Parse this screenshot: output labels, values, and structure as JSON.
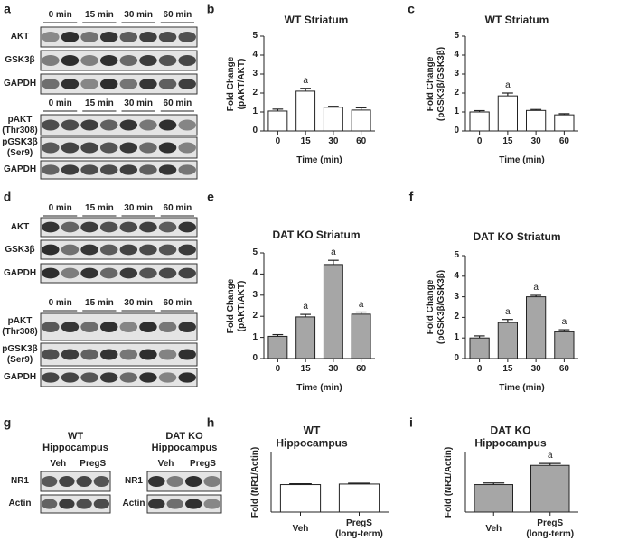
{
  "panel_labels": [
    "a",
    "b",
    "c",
    "d",
    "e",
    "f",
    "g",
    "h",
    "i"
  ],
  "blots": [
    {
      "groups": [
        {
          "columns": [
            "0 min",
            "15 min",
            "30 min",
            "60 min"
          ],
          "rows": [
            "AKT",
            "GSK3β",
            "GAPDH"
          ]
        },
        {
          "columns": [
            "0 min",
            "15 min",
            "30 min",
            "60 min"
          ],
          "rows": [
            "pAKT\n(Thr308)",
            "pGSK3β\n(Ser9)",
            "GAPDH"
          ]
        }
      ]
    },
    {
      "groups": [
        {
          "columns": [
            "0 min",
            "15 min",
            "30 min",
            "60 min"
          ],
          "rows": [
            "AKT",
            "GSK3β",
            "GAPDH"
          ]
        },
        {
          "columns": [
            "0 min",
            "15 min",
            "30 min",
            "60 min"
          ],
          "rows": [
            "pAKT\n(Thr308)",
            "pGSK3β\n(Ser9)",
            "GAPDH"
          ]
        }
      ]
    },
    {
      "groups": [
        {
          "title": "WT\nHippocampus",
          "columns": [
            "Veh",
            "PregS"
          ],
          "rows": [
            "NR1",
            "Actin"
          ]
        },
        {
          "title": "DAT KO\nHippocampus",
          "columns": [
            "Veh",
            "PregS"
          ],
          "rows": [
            "NR1",
            "Actin"
          ]
        }
      ]
    }
  ],
  "chart_data": [
    {
      "type": "bar",
      "title": "WT Striatum",
      "ylabel": "Fold Change\n(pAKT/AKT)",
      "xlabel": "Time (min)",
      "categories": [
        "0",
        "15",
        "30",
        "60"
      ],
      "values": [
        1.05,
        2.1,
        1.25,
        1.1
      ],
      "errors": [
        0.1,
        0.15,
        0.05,
        0.12
      ],
      "color": "#ffffff",
      "ylim": [
        0,
        5
      ],
      "yticks": [
        0,
        1,
        2,
        3,
        4,
        5
      ],
      "annotations": [
        {
          "index": 1,
          "text": "a"
        }
      ]
    },
    {
      "type": "bar",
      "title": "WT Striatum",
      "ylabel": "Fold Change\n(pGSK3β/GSK3β)",
      "xlabel": "Time (min)",
      "categories": [
        "0",
        "15",
        "30",
        "60"
      ],
      "values": [
        1.0,
        1.85,
        1.08,
        0.85
      ],
      "errors": [
        0.07,
        0.15,
        0.05,
        0.06
      ],
      "color": "#ffffff",
      "ylim": [
        0,
        5
      ],
      "yticks": [
        0,
        1,
        2,
        3,
        4,
        5
      ],
      "annotations": [
        {
          "index": 1,
          "text": "a"
        }
      ]
    },
    {
      "type": "bar",
      "title": "DAT KO Striatum",
      "ylabel": "Fold Change\n(pAKT/AKT)",
      "xlabel": "Time (min)",
      "categories": [
        "0",
        "15",
        "30",
        "60"
      ],
      "values": [
        1.05,
        1.97,
        4.45,
        2.1
      ],
      "errors": [
        0.08,
        0.12,
        0.2,
        0.1
      ],
      "color": "#a6a6a6",
      "ylim": [
        0,
        5
      ],
      "yticks": [
        0,
        1,
        2,
        3,
        4,
        5
      ],
      "annotations": [
        {
          "index": 1,
          "text": "a"
        },
        {
          "index": 2,
          "text": "a"
        },
        {
          "index": 3,
          "text": "a"
        }
      ]
    },
    {
      "type": "bar",
      "title": "DAT KO Striatum",
      "ylabel": "Fold Change\n(pGSK3β/GSK3β)",
      "xlabel": "Time (min)",
      "categories": [
        "0",
        "15",
        "30",
        "60"
      ],
      "values": [
        1.0,
        1.75,
        3.0,
        1.3
      ],
      "errors": [
        0.1,
        0.15,
        0.07,
        0.1
      ],
      "color": "#a6a6a6",
      "ylim": [
        0,
        5
      ],
      "yticks": [
        0,
        1,
        2,
        3,
        4,
        5
      ],
      "annotations": [
        {
          "index": 1,
          "text": "a"
        },
        {
          "index": 2,
          "text": "a"
        },
        {
          "index": 3,
          "text": "a"
        }
      ]
    },
    {
      "type": "bar",
      "title": "WT\nHippocampus",
      "ylabel": "Fold (NR1/Actin)",
      "categories": [
        "Veh",
        "PregS\n(long-term)"
      ],
      "values": [
        1.0,
        1.02
      ],
      "errors": [
        0.03,
        0.03
      ],
      "color": "#ffffff",
      "ylim": [
        0,
        2.2
      ]
    },
    {
      "type": "bar",
      "title": "DAT KO\nHippocampus",
      "ylabel": "Fold (NR1/Actin)",
      "categories": [
        "Veh",
        "PregS\n(long-term)"
      ],
      "values": [
        1.0,
        1.7
      ],
      "errors": [
        0.06,
        0.07
      ],
      "color": "#a6a6a6",
      "ylim": [
        0,
        2.2
      ],
      "annotations": [
        {
          "index": 1,
          "text": "a"
        }
      ]
    }
  ]
}
